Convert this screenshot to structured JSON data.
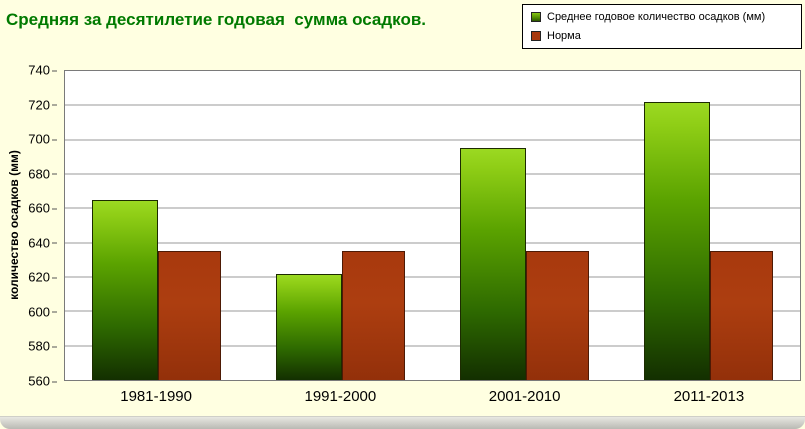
{
  "title": "Средняя за десятилетие годовая  сумма осадков.",
  "colors": {
    "background": "#FFFFE1",
    "plot_background": "#FFFFFF",
    "title_text": "#007A00",
    "gridline": "#9A9A9A",
    "series_precipitation_top": "#9BD922",
    "series_precipitation_bottom": "#132F00",
    "series_norm": "#A8390E"
  },
  "chart_data": {
    "type": "bar",
    "title": "Средняя за десятилетие годовая сумма осадков.",
    "categories": [
      "1981-1990",
      "1991-2000",
      "2001-2010",
      "2011-2013"
    ],
    "series": [
      {
        "name": "Среднее годовое количество осадков (мм)",
        "values": [
          665,
          622,
          695,
          722
        ],
        "color": "#6FA800"
      },
      {
        "name": "Норма",
        "values": [
          635,
          635,
          635,
          635
        ],
        "color": "#A8390E"
      }
    ],
    "xlabel": "",
    "ylabel": "количество осадков (мм)",
    "ylim": [
      560,
      740
    ],
    "ytick_step": 20,
    "grid": true,
    "legend_position": "top-right"
  }
}
